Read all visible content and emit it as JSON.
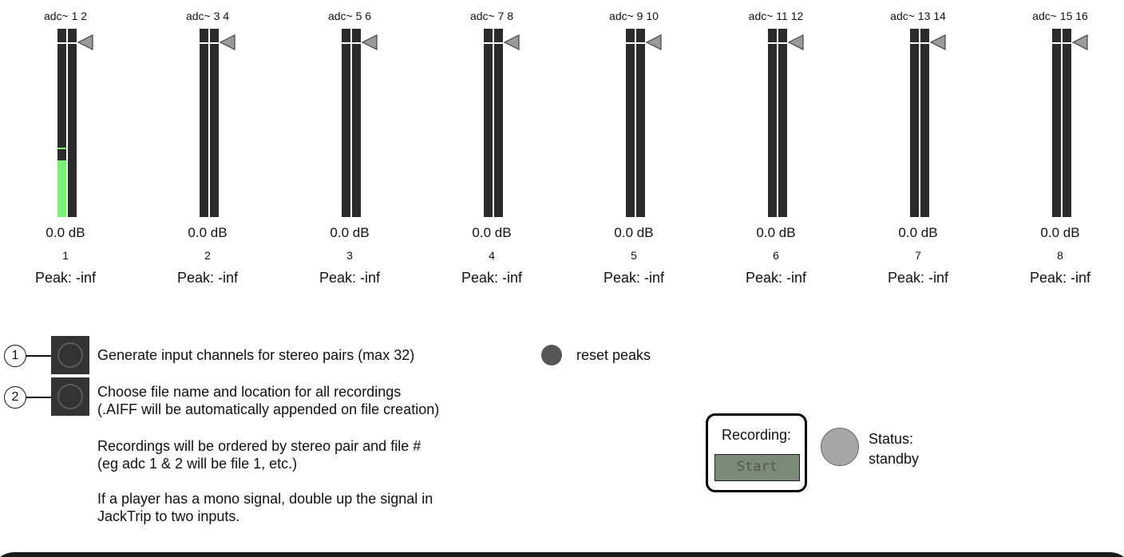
{
  "channels": [
    {
      "title": "adc~ 1 2",
      "db": "0.0 dB",
      "number": "1",
      "peak": "Peak: -inf",
      "level_left": 0.3,
      "peak_hold_left": 0.36
    },
    {
      "title": "adc~ 3 4",
      "db": "0.0 dB",
      "number": "2",
      "peak": "Peak: -inf",
      "level_left": 0,
      "peak_hold_left": 0
    },
    {
      "title": "adc~ 5 6",
      "db": "0.0 dB",
      "number": "3",
      "peak": "Peak: -inf",
      "level_left": 0,
      "peak_hold_left": 0
    },
    {
      "title": "adc~ 7 8",
      "db": "0.0 dB",
      "number": "4",
      "peak": "Peak: -inf",
      "level_left": 0,
      "peak_hold_left": 0
    },
    {
      "title": "adc~ 9 10",
      "db": "0.0 dB",
      "number": "5",
      "peak": "Peak: -inf",
      "level_left": 0,
      "peak_hold_left": 0
    },
    {
      "title": "adc~ 11 12",
      "db": "0.0 dB",
      "number": "6",
      "peak": "Peak: -inf",
      "level_left": 0,
      "peak_hold_left": 0
    },
    {
      "title": "adc~ 13 14",
      "db": "0.0 dB",
      "number": "7",
      "peak": "Peak: -inf",
      "level_left": 0,
      "peak_hold_left": 0
    },
    {
      "title": "adc~ 15 16",
      "db": "0.0 dB",
      "number": "8",
      "peak": "Peak: -inf",
      "level_left": 0,
      "peak_hold_left": 0
    }
  ],
  "steps": [
    {
      "badge": "1",
      "line1": "Generate input channels for stereo pairs (max 32)"
    },
    {
      "badge": "2",
      "line1": "Choose file name and location for all recordings",
      "line2": "(.AIFF will be automatically appended on file creation)"
    }
  ],
  "notes": [
    {
      "line1": "Recordings will be ordered by stereo pair and file #",
      "line2": "(eg adc 1 & 2 will be file 1, etc.)"
    },
    {
      "line1": "If a player has a mono signal, double up the signal in",
      "line2": "JackTrip to two inputs."
    }
  ],
  "reset": {
    "label": "reset peaks"
  },
  "recording": {
    "label": "Recording:",
    "button": "Start"
  },
  "status": {
    "label": "Status:",
    "value": "standby"
  },
  "colors": {
    "meter_bg": "#2b2b2b",
    "meter_level": "#7ef07a",
    "bang_bg": "#333333",
    "record_button": "#7c8b78",
    "status_led": "#a7a7a7"
  },
  "icons": {
    "gain_pointer": "triangle-left-icon",
    "bang": "bang-circle-icon",
    "reset": "filled-circle-icon"
  }
}
